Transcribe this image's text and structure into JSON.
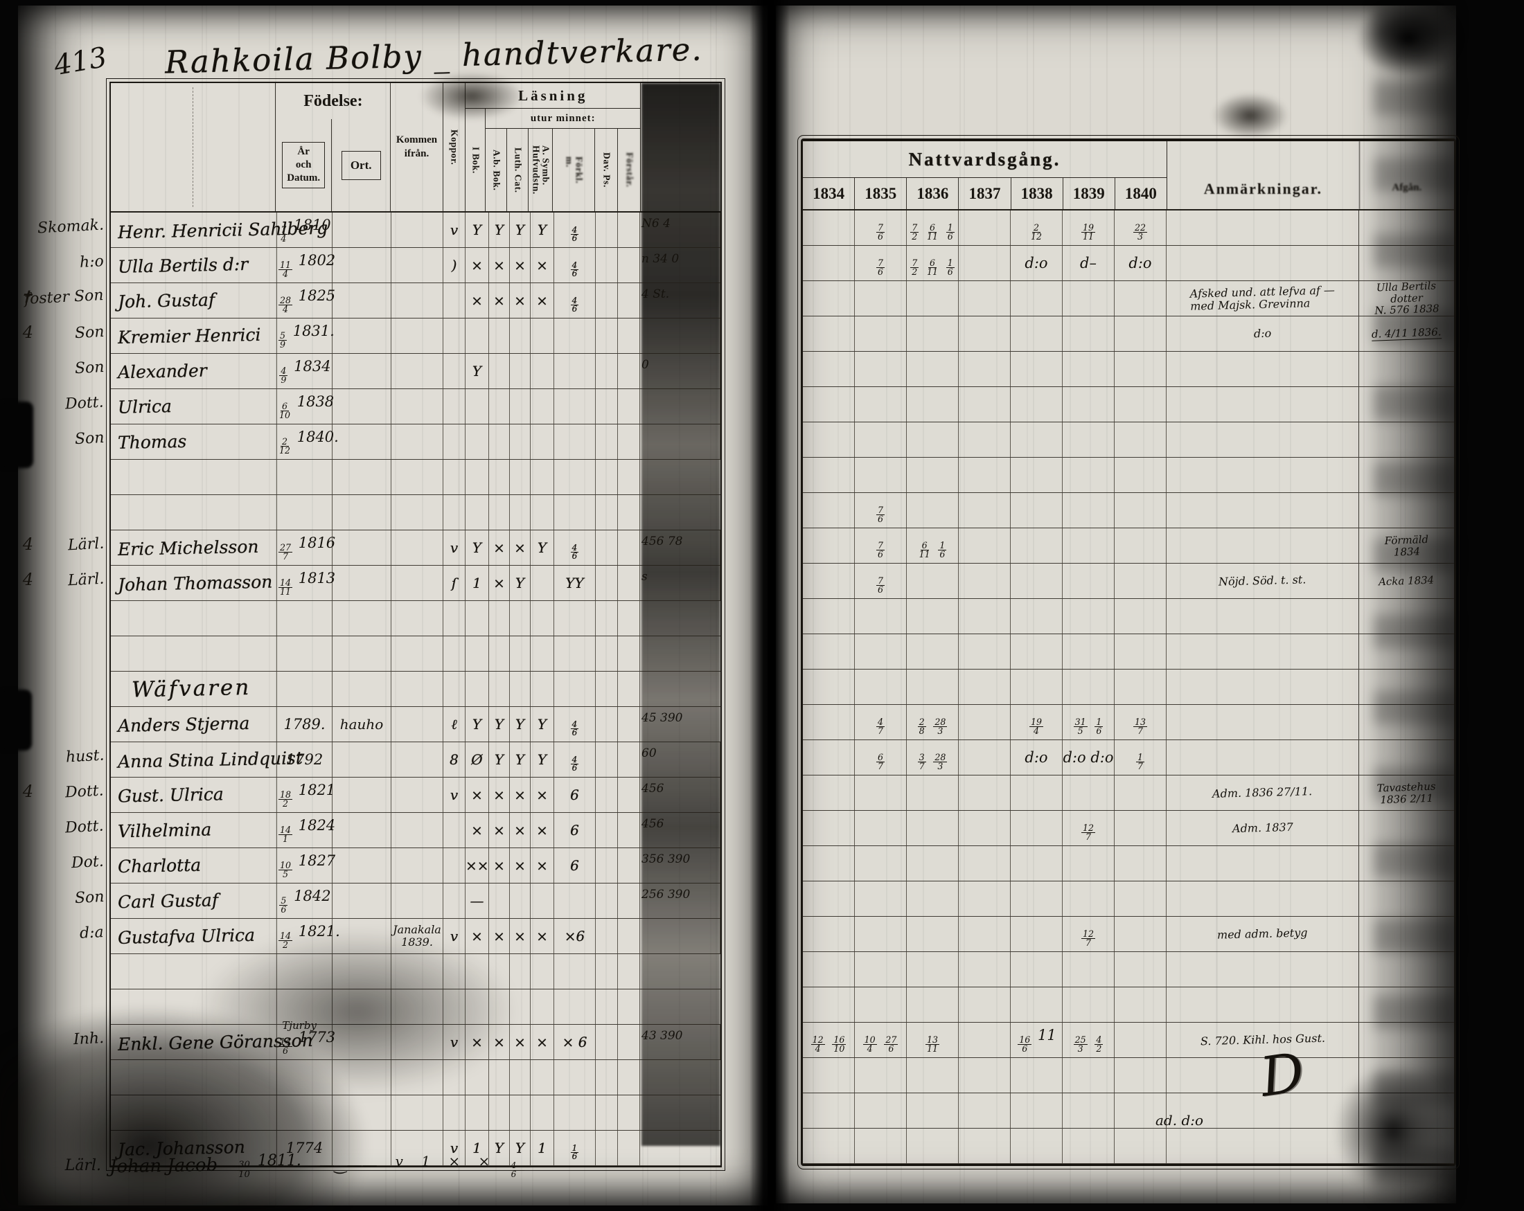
{
  "page": {
    "number": "413",
    "title": "Rahkoila Bolby _ handtverkare."
  },
  "left_table": {
    "headers": {
      "fodelse": "Födelse:",
      "datum": "År\noch\nDatum.",
      "ort": "Ort.",
      "kommen": "Kommen\nifrån.",
      "koppor": "Koppor.",
      "lasning": "Läsning",
      "utur": "utur minnet:",
      "cols": [
        "I Bok.",
        "A.b. Bok.",
        "Luth. Cat.",
        "A. Symb.\nHufvudstn.",
        "Förkl.\nm.",
        "Dav. Ps.",
        "Förstår."
      ]
    },
    "rows": [
      {
        "m2": "",
        "margin": "Skomak.",
        "name": "Henr. Henricii Sahlberg",
        "date": "7/4 1810",
        "ort": "",
        "kommen": "",
        "note": "",
        "marks": [
          "v",
          "Y",
          "Y",
          "Y",
          "Y",
          "4/6",
          "",
          ""
        ],
        "score": "N6 4"
      },
      {
        "m2": "",
        "margin": "h:o",
        "name": "Ulla Bertils d:r",
        "date": "11/4 1802",
        "ort": "",
        "kommen": "",
        "note": "",
        "marks": [
          ")",
          "×",
          "×",
          "×",
          "×",
          "4/6",
          "",
          ""
        ],
        "score": "n 34 0"
      },
      {
        "m2": "✝",
        "margin": "foster Son",
        "name": "Joh. Gustaf",
        "date": "28/4 1825",
        "ort": "",
        "kommen": "",
        "note": "",
        "marks": [
          "",
          "×",
          "×",
          "×",
          "×",
          "4/6",
          "",
          ""
        ],
        "score": "4 St."
      },
      {
        "m2": "4",
        "margin": "Son",
        "name": "Kremier Henrici",
        "date": "5/9 1831.",
        "ort": "",
        "kommen": "",
        "note": "",
        "marks": [
          "",
          "",
          "",
          "",
          "",
          "",
          "",
          ""
        ],
        "score": ""
      },
      {
        "m2": "",
        "margin": "Son",
        "name": "Alexander",
        "date": "4/9 1834",
        "ort": "",
        "kommen": "",
        "note": "",
        "marks": [
          "",
          "Y",
          "",
          "",
          "",
          "",
          "",
          ""
        ],
        "score": "0"
      },
      {
        "m2": "",
        "margin": "Dott.",
        "name": "Ulrica",
        "date": "6/10 1838",
        "ort": "",
        "kommen": "",
        "note": "",
        "marks": [
          "",
          "",
          "",
          "",
          "",
          "",
          "",
          ""
        ],
        "score": ""
      },
      {
        "m2": "",
        "margin": "Son",
        "name": "Thomas",
        "date": "2/12 1840.",
        "ort": "",
        "kommen": "",
        "note": "",
        "marks": [
          "",
          "",
          "",
          "",
          "",
          "",
          "",
          ""
        ],
        "score": ""
      },
      {},
      {},
      {
        "m2": "4",
        "margin": "Lärl.",
        "name": "Eric Michelsson",
        "date": "27/7 1816",
        "ort": "",
        "kommen": "",
        "note": "",
        "marks": [
          "v",
          "Y",
          "×",
          "×",
          "Y",
          "4/6",
          "",
          ""
        ],
        "score": "456 78"
      },
      {
        "m2": "4",
        "margin": "Lärl.",
        "name": "Johan Thomasson",
        "date": "14/11 1813",
        "ort": "",
        "kommen": "",
        "note": "",
        "marks": [
          "ſ",
          "1",
          "×",
          "Y",
          "",
          "YY",
          "",
          ""
        ],
        "score": "s"
      },
      {},
      {},
      {
        "section": true,
        "name": "Wäfvaren"
      },
      {
        "m2": "",
        "margin": "",
        "name": "Anders Stjerna",
        "date": "1789.",
        "ort": "hauho",
        "kommen": "",
        "note": "",
        "marks": [
          "ℓ",
          "Y",
          "Y",
          "Y",
          "Y",
          "4/6",
          "",
          ""
        ],
        "score": "45 390"
      },
      {
        "m2": "",
        "margin": "hust.",
        "name": "Anna Stina Lindquist",
        "date": "1792",
        "ort": "",
        "kommen": "",
        "note": "",
        "marks": [
          "8",
          "Ø",
          "Y",
          "Y",
          "Y",
          "4/6",
          "",
          ""
        ],
        "score": "60"
      },
      {
        "m2": "4",
        "margin": "Dott.",
        "name": "Gust. Ulrica",
        "date": "18/2 1821",
        "ort": "",
        "kommen": "",
        "note": "",
        "marks": [
          "v",
          "×",
          "×",
          "×",
          "×",
          "6",
          "",
          ""
        ],
        "score": "456"
      },
      {
        "m2": "",
        "margin": "Dott.",
        "name": "Vilhelmina",
        "date": "14/1 1824",
        "ort": "",
        "kommen": "",
        "note": "",
        "marks": [
          "",
          "×",
          "×",
          "×",
          "×",
          "6",
          "",
          ""
        ],
        "score": "456"
      },
      {
        "m2": "",
        "margin": "Dot.",
        "name": "Charlotta",
        "date": "10/5 1827",
        "ort": "",
        "kommen": "",
        "note": "",
        "marks": [
          "",
          "××",
          "×",
          "×",
          "×",
          "6",
          "",
          ""
        ],
        "score": "356 390"
      },
      {
        "m2": "",
        "margin": "Son",
        "name": "Carl Gustaf",
        "date": "5/6 1842",
        "ort": "",
        "kommen": "",
        "note": "",
        "marks": [
          "",
          "—",
          "",
          "",
          "",
          "",
          "",
          ""
        ],
        "score": "256 390"
      },
      {
        "m2": "",
        "margin": "d:a",
        "name": "Gustafva Ulrica",
        "date": "14/2 1821.",
        "ort": "",
        "kommen": "Janakala\n1839.",
        "note": "",
        "marks": [
          "v",
          "×",
          "×",
          "×",
          "×",
          "×6",
          "",
          ""
        ],
        "score": ""
      },
      {},
      {},
      {
        "m2": "",
        "margin": "Inh.",
        "name": "Enkl. Gene Göransson",
        "date": "14/6 1773",
        "ort": "",
        "kommen": "",
        "note": "Tjurby",
        "marks": [
          "v",
          "×",
          "×",
          "×",
          "×",
          "× 6",
          "",
          ""
        ],
        "score": "43 390"
      },
      {},
      {},
      {
        "m2": "",
        "margin": "",
        "name": "Jac. Johansson",
        "date": "1774",
        "ort": "",
        "kommen": "",
        "note": "",
        "marks": [
          "v",
          "1",
          "Y",
          "Y",
          "1",
          "1/6",
          "",
          ""
        ],
        "score": ""
      }
    ],
    "footer_row": {
      "margin": "Lärl.",
      "name": "Johan Jacob",
      "date": "30/10 1811.",
      "dash": "—‿——",
      "marks": "v 1 × × 4/6"
    }
  },
  "right_table": {
    "header": "Nattvardsgång.",
    "years": [
      "1834",
      "1835",
      "1836",
      "1837",
      "1838",
      "1839",
      "1840"
    ],
    "anmarkningar_label": "Anmärkningar.",
    "afgang_label": "Afgån.",
    "rows": [
      {
        "cells": [
          "",
          "7/6",
          "7/2 6/11 1/6",
          "",
          "2/12",
          "19/11",
          "22/3"
        ],
        "anm": "",
        "afg": ""
      },
      {
        "cells": [
          "",
          "7/6",
          "7/2 6/11 1/6",
          "",
          "d:o",
          "d–",
          "d:o"
        ],
        "anm": "",
        "afg": ""
      },
      {
        "anm": "Afsked und. att lefva af —\nmed Majsk. Grevinna",
        "afg": "Ulla Bertils dotter\nN. 576 1838"
      },
      {
        "anm": "d:o",
        "afg": "d. 4/11 1836.",
        "afg_u": true
      },
      {},
      {},
      {},
      {},
      {
        "cells": [
          "",
          "7/6",
          "",
          "",
          "",
          "",
          ""
        ]
      },
      {
        "cells": [
          "",
          "7/6",
          "6/11 1/6",
          "",
          "",
          "",
          ""
        ],
        "afg": "Förmäld\n1834"
      },
      {
        "cells": [
          "",
          "7/6",
          "",
          "",
          "",
          "",
          ""
        ],
        "anm": "Nöjd. Söd. t. st.",
        "afg": "Acka 1834"
      },
      {},
      {},
      {},
      {
        "cells": [
          "",
          "4/7",
          "2/8 28/3",
          "",
          "19/4",
          "31/5 1/6",
          "13/7"
        ]
      },
      {
        "cells": [
          "",
          "6/7",
          "3/7 28/3",
          "",
          "d:o",
          "d:o d:o",
          "1/7"
        ]
      },
      {
        "anm": "Adm. 1836 27/11.",
        "afg": "Tavastehus\n1836 2/11"
      },
      {
        "cells": [
          "",
          "",
          "",
          "",
          "",
          "12/7",
          ""
        ],
        "anm": "Adm. 1837"
      },
      {},
      {},
      {
        "cells": [
          "",
          "",
          "",
          "",
          "",
          "12/7",
          ""
        ],
        "anm": "med adm. betyg"
      },
      {},
      {},
      {
        "cells": [
          "12/4 16/10",
          "10/4 27/6",
          "13/11",
          "",
          "16/6 11",
          "25/3 4/2",
          ""
        ],
        "anm": "S. 720. Kihl. hos Gust."
      },
      {},
      {},
      {}
    ],
    "footer_note": "ad. d:o",
    "scrawl": "D"
  }
}
